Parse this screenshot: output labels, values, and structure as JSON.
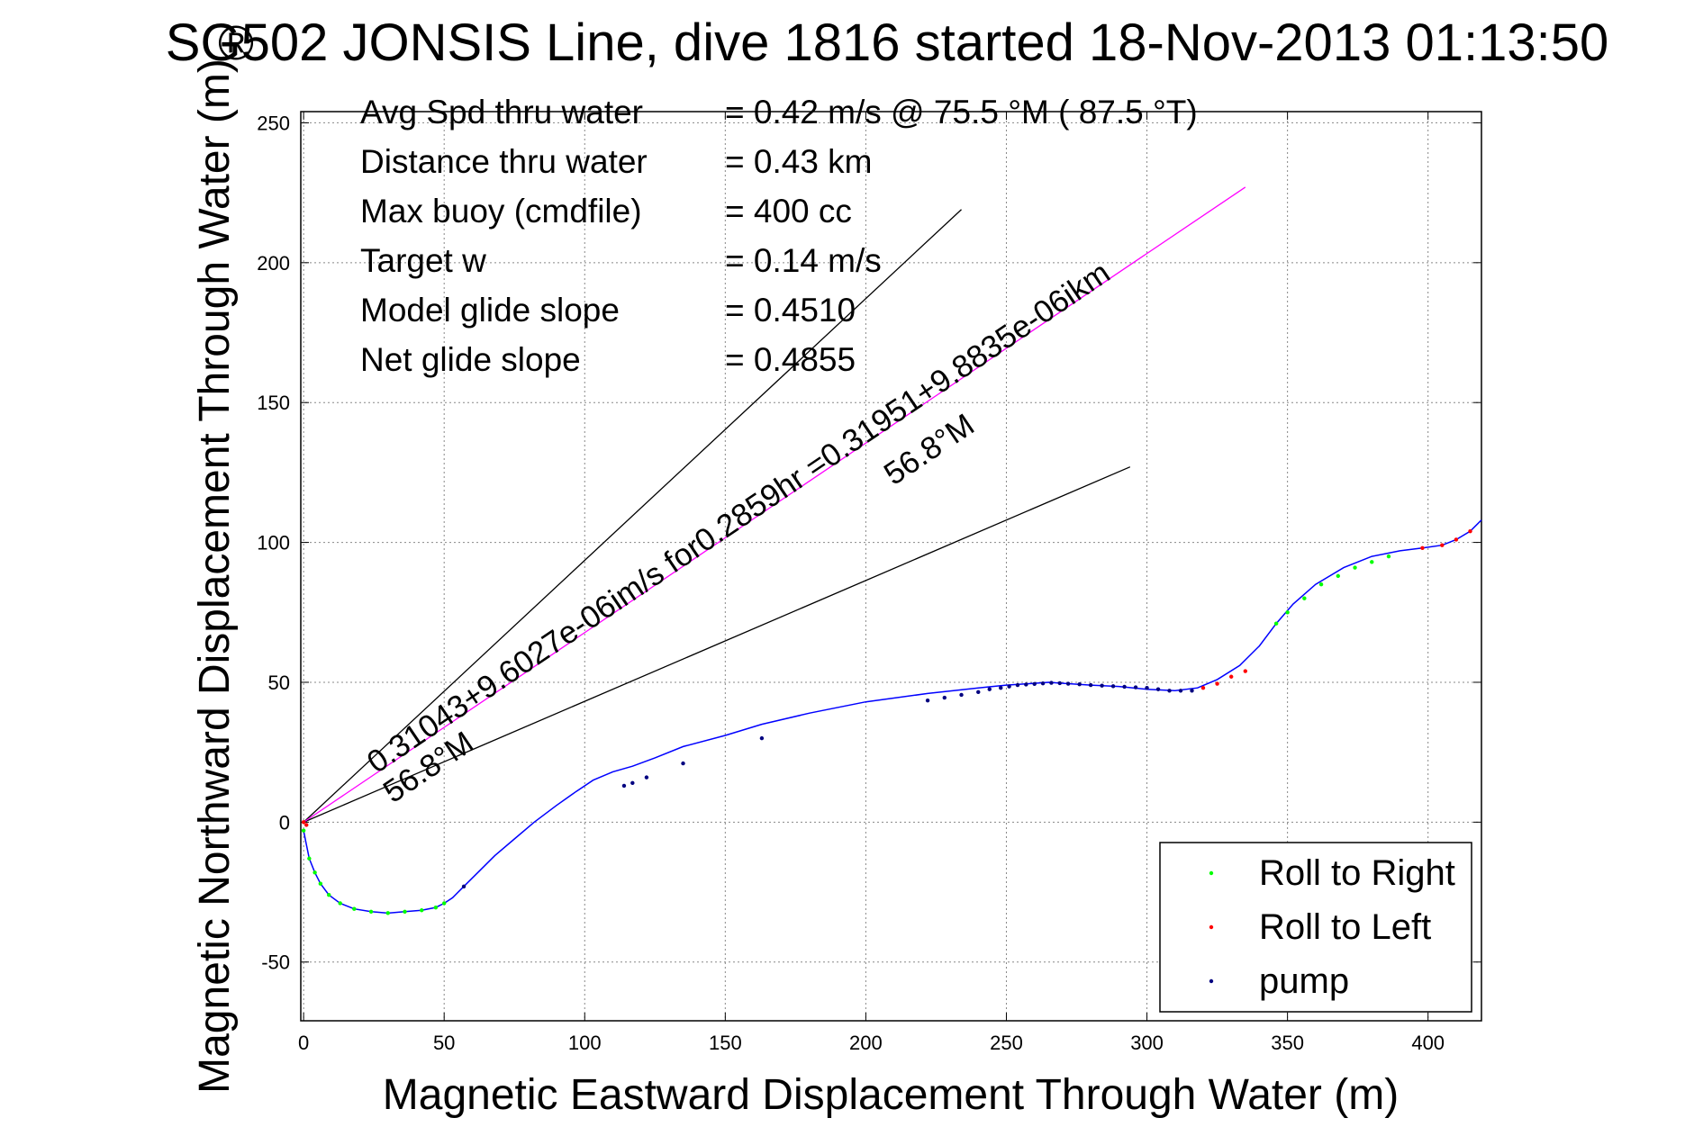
{
  "chart_data": {
    "type": "scatter",
    "title": "SG502 JONSIS Line, dive 1816 started 18-Nov-2013 01:13:50",
    "title_overlay_char": "®",
    "xlabel": "Magnetic Eastward Displacement Through Water (m)",
    "ylabel": "Magnetic Northward Displacement Through Water (m)",
    "xlim": [
      -1,
      419
    ],
    "ylim": [
      -71,
      254
    ],
    "xticks": [
      0,
      50,
      100,
      150,
      200,
      250,
      300,
      350,
      400
    ],
    "yticks": [
      -50,
      0,
      50,
      100,
      150,
      200,
      250
    ],
    "grid": true,
    "stats": [
      {
        "label": "Avg Spd thru water",
        "value": "=  0.42 m/s @  75.5 °M ( 87.5 °T)"
      },
      {
        "label": "Distance thru water",
        "value": "=  0.43 km"
      },
      {
        "label": "Max buoy (cmdfile)",
        "value": "= 400 cc"
      },
      {
        "label": "Target w",
        "value": "= 0.14 m/s"
      },
      {
        "label": "Model glide slope",
        "value": "= 0.4510"
      },
      {
        "label": "Net glide slope",
        "value": "= 0.4855"
      }
    ],
    "track": {
      "name": "track",
      "color": "#0000ff",
      "x": [
        0,
        1,
        2,
        4,
        6,
        9,
        13,
        18,
        24,
        30,
        36,
        42,
        47,
        50,
        53,
        57,
        62,
        68,
        75,
        82,
        90,
        97,
        103,
        110,
        117,
        125,
        135,
        150,
        163,
        180,
        200,
        222,
        240,
        250,
        258,
        265,
        272,
        280,
        290,
        300,
        310,
        318,
        325,
        333,
        340,
        346,
        352,
        360,
        370,
        380,
        390,
        398,
        405,
        410,
        415,
        419
      ],
      "y": [
        -3,
        -8,
        -13,
        -18,
        -22,
        -26,
        -29,
        -31,
        -32,
        -32.5,
        -32,
        -31.5,
        -30.5,
        -29,
        -27,
        -23,
        -18,
        -12,
        -6,
        0,
        6,
        11,
        15,
        18,
        20,
        23,
        27,
        31,
        35,
        39,
        43,
        46,
        48,
        49,
        49.5,
        50,
        49.5,
        49,
        48.5,
        47.5,
        47,
        48,
        51,
        56,
        63,
        71,
        78,
        85,
        91,
        95,
        97,
        98,
        99,
        101,
        104,
        108
      ]
    },
    "roll_right": {
      "name": "Roll to Right",
      "color": "#00ff00",
      "x": [
        0,
        2,
        4,
        6,
        9,
        13,
        18,
        24,
        30,
        36,
        42,
        47,
        50,
        346,
        350,
        356,
        362,
        368,
        374,
        380,
        386
      ],
      "y": [
        -3,
        -13,
        -18,
        -22,
        -26,
        -29,
        -31,
        -32,
        -32.5,
        -32,
        -31.5,
        -30.5,
        -29,
        71,
        75,
        80,
        85,
        88,
        91,
        93,
        95
      ]
    },
    "roll_left": {
      "name": "Roll to Left",
      "color": "#ff0000",
      "x": [
        0,
        1,
        320,
        325,
        330,
        335,
        398,
        405,
        410,
        415
      ],
      "y": [
        0,
        -1,
        48,
        49.5,
        52,
        54,
        98,
        99,
        101,
        104
      ]
    },
    "pump": {
      "name": "pump",
      "color": "#000080",
      "x": [
        57,
        114,
        117,
        122,
        135,
        163,
        222,
        228,
        234,
        240,
        244,
        248,
        251,
        254,
        257,
        260,
        263,
        266,
        269,
        272,
        276,
        280,
        284,
        288,
        292,
        296,
        300,
        304,
        308,
        312,
        316
      ],
      "y": [
        -23,
        13,
        14,
        16,
        21,
        30,
        43.5,
        44.5,
        45.5,
        46.5,
        47.5,
        48,
        48.5,
        49,
        49.2,
        49.4,
        49.6,
        49.8,
        49.7,
        49.5,
        49.3,
        49,
        48.8,
        48.6,
        48.4,
        48.2,
        48,
        47.5,
        47,
        47,
        47
      ]
    },
    "lines": [
      {
        "name": "heading-line-upper",
        "color": "#000000",
        "x": [
          0,
          234
        ],
        "y": [
          0,
          219
        ]
      },
      {
        "name": "heading-line-lower",
        "color": "#000000",
        "x": [
          0,
          294
        ],
        "y": [
          0,
          127
        ]
      },
      {
        "name": "current-line",
        "color": "#ff00ff",
        "x": [
          0,
          335
        ],
        "y": [
          0,
          227
        ]
      }
    ],
    "annotations": [
      {
        "name": "annotation-depth-avg-current",
        "text": "0.31043+9.6027e-06im/s for0.2859hr =0.31951+9.8835e-06ikm"
      },
      {
        "name": "annotation-heading-upper",
        "text": "56.8°M"
      },
      {
        "name": "annotation-heading-lower",
        "text": "56.8°M"
      }
    ],
    "legend": {
      "position": "bottom-right",
      "entries": [
        {
          "label": "Roll to Right",
          "color": "#00ff00"
        },
        {
          "label": "Roll to Left",
          "color": "#ff0000"
        },
        {
          "label": "pump",
          "color": "#000080"
        }
      ]
    }
  }
}
